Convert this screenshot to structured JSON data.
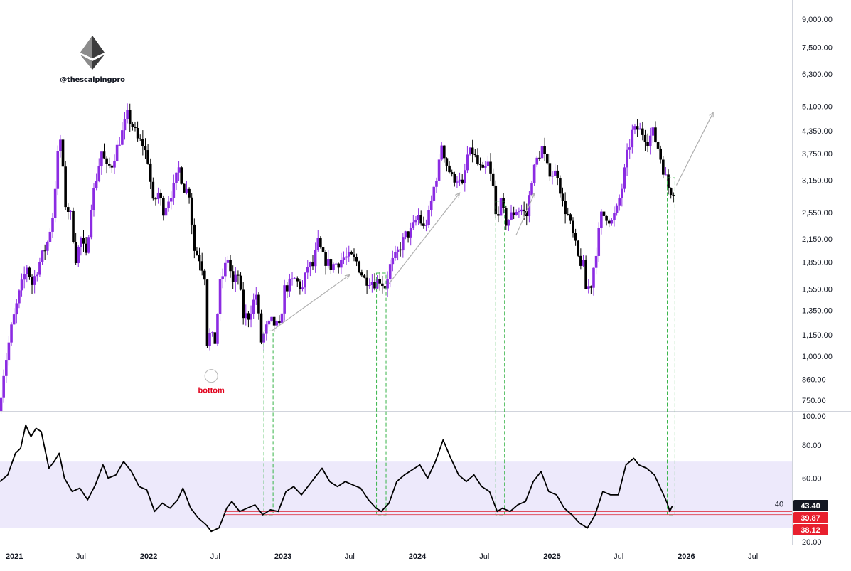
{
  "brand": {
    "handle": "@thescalpingpro",
    "logo_icon": "ethereum-logo-icon"
  },
  "colors": {
    "bull": "#8b2be2",
    "bear": "#000000",
    "rsi_line": "#000000",
    "rsi_band": "#ede9fb",
    "support_line": "#e05262",
    "highlight_box": "#39b54a",
    "trend_arrow": "#b0b0b0",
    "bottom_label": "#e0001b"
  },
  "chart_data": [
    {
      "type": "candlestick",
      "y_scale": "log",
      "ylim": [
        700,
        10200
      ],
      "y_ticks": [
        "9,000.00",
        "7,500.00",
        "6,300.00",
        "5,100.00",
        "4,350.00",
        "3,750.00",
        "3,150.00",
        "2,550.00",
        "2,150.00",
        "1,850.00",
        "1,550.00",
        "1,350.00",
        "1,150.00",
        "1,000.00",
        "860.00",
        "750.00"
      ],
      "y_tick_values": [
        9000,
        7500,
        6300,
        5100,
        4350,
        3750,
        3150,
        2550,
        2150,
        1850,
        1550,
        1350,
        1150,
        1000,
        860,
        750
      ],
      "x_range": [
        "2020-11-23",
        "2026-10-15"
      ],
      "x_ticks": [
        {
          "label": "2021",
          "date": "2021-01-01"
        },
        {
          "label": "Jul",
          "date": "2021-07-01"
        },
        {
          "label": "2022",
          "date": "2022-01-01"
        },
        {
          "label": "Jul",
          "date": "2022-07-01"
        },
        {
          "label": "2023",
          "date": "2023-01-01"
        },
        {
          "label": "Jul",
          "date": "2023-07-01"
        },
        {
          "label": "2024",
          "date": "2024-01-01"
        },
        {
          "label": "Jul",
          "date": "2024-07-01"
        },
        {
          "label": "2025",
          "date": "2025-01-01"
        },
        {
          "label": "Jul",
          "date": "2025-07-01"
        },
        {
          "label": "2026",
          "date": "2026-01-01"
        },
        {
          "label": "Jul",
          "date": "2026-07-01"
        }
      ],
      "price_path": [
        [
          "2020-11-23",
          700
        ],
        [
          "2020-12-07",
          900
        ],
        [
          "2020-12-28",
          1200
        ],
        [
          "2021-01-18",
          1500
        ],
        [
          "2021-02-08",
          1800
        ],
        [
          "2021-02-22",
          1600
        ],
        [
          "2021-03-15",
          1850
        ],
        [
          "2021-04-05",
          2100
        ],
        [
          "2021-04-19",
          2500
        ],
        [
          "2021-05-03",
          3700
        ],
        [
          "2021-05-10",
          4100
        ],
        [
          "2021-05-24",
          2700
        ],
        [
          "2021-06-07",
          2500
        ],
        [
          "2021-06-21",
          1900
        ],
        [
          "2021-07-05",
          2150
        ],
        [
          "2021-07-19",
          1900
        ],
        [
          "2021-08-02",
          2700
        ],
        [
          "2021-08-16",
          3200
        ],
        [
          "2021-08-30",
          3800
        ],
        [
          "2021-09-13",
          3400
        ],
        [
          "2021-09-27",
          3500
        ],
        [
          "2021-10-11",
          3900
        ],
        [
          "2021-10-25",
          4300
        ],
        [
          "2021-11-08",
          4800
        ],
        [
          "2021-11-22",
          4500
        ],
        [
          "2021-12-06",
          4100
        ],
        [
          "2021-12-20",
          4000
        ],
        [
          "2022-01-03",
          3600
        ],
        [
          "2022-01-17",
          2700
        ],
        [
          "2022-01-31",
          2900
        ],
        [
          "2022-02-14",
          2600
        ],
        [
          "2022-02-28",
          2800
        ],
        [
          "2022-03-14",
          3000
        ],
        [
          "2022-03-28",
          3400
        ],
        [
          "2022-04-11",
          3000
        ],
        [
          "2022-04-25",
          2900
        ],
        [
          "2022-05-09",
          2000
        ],
        [
          "2022-05-23",
          1900
        ],
        [
          "2022-06-06",
          1700
        ],
        [
          "2022-06-13",
          1100
        ],
        [
          "2022-06-20",
          1150
        ],
        [
          "2022-07-04",
          1100
        ],
        [
          "2022-07-18",
          1600
        ],
        [
          "2022-08-08",
          1900
        ],
        [
          "2022-08-22",
          1600
        ],
        [
          "2022-09-05",
          1700
        ],
        [
          "2022-09-19",
          1300
        ],
        [
          "2022-10-03",
          1300
        ],
        [
          "2022-10-24",
          1500
        ],
        [
          "2022-11-07",
          1100
        ],
        [
          "2022-11-21",
          1200
        ],
        [
          "2022-12-05",
          1250
        ],
        [
          "2022-12-26",
          1200
        ],
        [
          "2023-01-09",
          1550
        ],
        [
          "2023-01-23",
          1600
        ],
        [
          "2023-02-06",
          1650
        ],
        [
          "2023-02-27",
          1550
        ],
        [
          "2023-03-13",
          1800
        ],
        [
          "2023-03-27",
          1800
        ],
        [
          "2023-04-10",
          2100
        ],
        [
          "2023-04-24",
          1900
        ],
        [
          "2023-05-15",
          1800
        ],
        [
          "2023-06-05",
          1850
        ],
        [
          "2023-06-19",
          1900
        ],
        [
          "2023-07-10",
          1900
        ],
        [
          "2023-07-24",
          1850
        ],
        [
          "2023-08-14",
          1650
        ],
        [
          "2023-08-28",
          1650
        ],
        [
          "2023-09-11",
          1620
        ],
        [
          "2023-09-25",
          1650
        ],
        [
          "2023-10-09",
          1580
        ],
        [
          "2023-10-23",
          1800
        ],
        [
          "2023-11-06",
          1900
        ],
        [
          "2023-11-20",
          2050
        ],
        [
          "2023-12-04",
          2200
        ],
        [
          "2023-12-18",
          2250
        ],
        [
          "2024-01-08",
          2500
        ],
        [
          "2024-01-22",
          2300
        ],
        [
          "2024-02-05",
          2500
        ],
        [
          "2024-02-19",
          3000
        ],
        [
          "2024-03-04",
          3500
        ],
        [
          "2024-03-11",
          4000
        ],
        [
          "2024-03-25",
          3500
        ],
        [
          "2024-04-08",
          3200
        ],
        [
          "2024-04-22",
          3200
        ],
        [
          "2024-05-06",
          3000
        ],
        [
          "2024-05-20",
          3700
        ],
        [
          "2024-06-03",
          3800
        ],
        [
          "2024-06-17",
          3500
        ],
        [
          "2024-07-01",
          3300
        ],
        [
          "2024-07-15",
          3500
        ],
        [
          "2024-07-29",
          3000
        ],
        [
          "2024-08-05",
          2500
        ],
        [
          "2024-08-19",
          2700
        ],
        [
          "2024-09-02",
          2400
        ],
        [
          "2024-09-16",
          2500
        ],
        [
          "2024-09-30",
          2600
        ],
        [
          "2024-10-14",
          2600
        ],
        [
          "2024-10-28",
          2500
        ],
        [
          "2024-11-11",
          3200
        ],
        [
          "2024-11-25",
          3600
        ],
        [
          "2024-12-09",
          3900
        ],
        [
          "2024-12-23",
          3400
        ],
        [
          "2025-01-06",
          3300
        ],
        [
          "2025-01-20",
          3300
        ],
        [
          "2025-02-03",
          2700
        ],
        [
          "2025-02-17",
          2500
        ],
        [
          "2025-03-03",
          2200
        ],
        [
          "2025-03-17",
          1900
        ],
        [
          "2025-03-31",
          1800
        ],
        [
          "2025-04-07",
          1550
        ],
        [
          "2025-04-21",
          1600
        ],
        [
          "2025-05-05",
          2000
        ],
        [
          "2025-05-19",
          2500
        ],
        [
          "2025-06-02",
          2500
        ],
        [
          "2025-06-16",
          2400
        ],
        [
          "2025-06-30",
          2600
        ],
        [
          "2025-07-14",
          3000
        ],
        [
          "2025-07-28",
          3700
        ],
        [
          "2025-08-11",
          4300
        ],
        [
          "2025-08-25",
          4400
        ],
        [
          "2025-09-08",
          4300
        ],
        [
          "2025-09-22",
          4100
        ],
        [
          "2025-10-06",
          4300
        ],
        [
          "2025-10-20",
          3900
        ],
        [
          "2025-11-03",
          3400
        ],
        [
          "2025-11-17",
          3000
        ],
        [
          "2025-11-24",
          2950
        ]
      ],
      "annotations": [
        {
          "type": "label",
          "text": "bottom",
          "date": "2022-06-20",
          "value": 880
        },
        {
          "type": "arrow",
          "from": [
            "2022-12-01",
            1180
          ],
          "to": [
            "2023-07-01",
            1700
          ]
        },
        {
          "type": "arrow",
          "from": [
            "2023-10-15",
            1600
          ],
          "to": [
            "2024-04-25",
            2900
          ]
        },
        {
          "type": "arrow",
          "from": [
            "2024-09-25",
            2200
          ],
          "to": [
            "2024-11-15",
            2900
          ]
        },
        {
          "type": "arrow",
          "from": [
            "2025-12-05",
            3050
          ],
          "to": [
            "2026-03-15",
            4900
          ]
        }
      ]
    },
    {
      "type": "line",
      "name": "RSI",
      "ylim": [
        20,
        100
      ],
      "y_ticks": [
        "100.00",
        "80.00",
        "60.00",
        "20.00"
      ],
      "y_tick_values": [
        100,
        80,
        60,
        20
      ],
      "band": [
        30,
        70
      ],
      "reference_lines": [
        {
          "label": "40",
          "value": 40
        },
        {
          "value": 39.87
        },
        {
          "value": 38.12
        }
      ],
      "value_labels": [
        {
          "text": "43.40",
          "value": 43.4,
          "bg": "#131722"
        },
        {
          "text": "39.87",
          "value": 39.87,
          "bg": "#e8202e"
        },
        {
          "text": "38.12",
          "value": 38.12,
          "bg": "#e8202e"
        }
      ],
      "points": [
        [
          "2020-11-23",
          58
        ],
        [
          "2020-12-14",
          62
        ],
        [
          "2021-01-04",
          75
        ],
        [
          "2021-01-18",
          78
        ],
        [
          "2021-02-01",
          92
        ],
        [
          "2021-02-15",
          85
        ],
        [
          "2021-03-01",
          90
        ],
        [
          "2021-03-15",
          88
        ],
        [
          "2021-04-05",
          66
        ],
        [
          "2021-04-19",
          70
        ],
        [
          "2021-05-03",
          75
        ],
        [
          "2021-05-17",
          60
        ],
        [
          "2021-06-07",
          52
        ],
        [
          "2021-06-28",
          54
        ],
        [
          "2021-07-19",
          47
        ],
        [
          "2021-08-09",
          56
        ],
        [
          "2021-08-30",
          68
        ],
        [
          "2021-09-13",
          60
        ],
        [
          "2021-10-04",
          62
        ],
        [
          "2021-10-25",
          70
        ],
        [
          "2021-11-15",
          64
        ],
        [
          "2021-12-06",
          55
        ],
        [
          "2021-12-27",
          53
        ],
        [
          "2022-01-17",
          40
        ],
        [
          "2022-02-07",
          45
        ],
        [
          "2022-02-28",
          42
        ],
        [
          "2022-03-21",
          47
        ],
        [
          "2022-04-04",
          54
        ],
        [
          "2022-04-25",
          42
        ],
        [
          "2022-05-16",
          36
        ],
        [
          "2022-06-06",
          32
        ],
        [
          "2022-06-20",
          28
        ],
        [
          "2022-07-11",
          30
        ],
        [
          "2022-08-01",
          42
        ],
        [
          "2022-08-15",
          46
        ],
        [
          "2022-09-05",
          40
        ],
        [
          "2022-09-26",
          42
        ],
        [
          "2022-10-17",
          44
        ],
        [
          "2022-11-07",
          38
        ],
        [
          "2022-11-28",
          41
        ],
        [
          "2022-12-19",
          40
        ],
        [
          "2023-01-09",
          52
        ],
        [
          "2023-01-30",
          55
        ],
        [
          "2023-02-20",
          50
        ],
        [
          "2023-03-13",
          56
        ],
        [
          "2023-04-03",
          62
        ],
        [
          "2023-04-17",
          66
        ],
        [
          "2023-05-08",
          58
        ],
        [
          "2023-05-29",
          55
        ],
        [
          "2023-06-19",
          58
        ],
        [
          "2023-07-10",
          56
        ],
        [
          "2023-07-31",
          54
        ],
        [
          "2023-08-21",
          47
        ],
        [
          "2023-09-11",
          42
        ],
        [
          "2023-09-25",
          40
        ],
        [
          "2023-10-16",
          45
        ],
        [
          "2023-11-06",
          58
        ],
        [
          "2023-11-27",
          62
        ],
        [
          "2023-12-18",
          65
        ],
        [
          "2024-01-08",
          68
        ],
        [
          "2024-01-29",
          60
        ],
        [
          "2024-02-19",
          70
        ],
        [
          "2024-03-11",
          83
        ],
        [
          "2024-04-01",
          72
        ],
        [
          "2024-04-22",
          62
        ],
        [
          "2024-05-13",
          58
        ],
        [
          "2024-06-03",
          62
        ],
        [
          "2024-06-24",
          55
        ],
        [
          "2024-07-15",
          52
        ],
        [
          "2024-08-05",
          40
        ],
        [
          "2024-08-19",
          42
        ],
        [
          "2024-09-09",
          40
        ],
        [
          "2024-09-30",
          44
        ],
        [
          "2024-10-21",
          46
        ],
        [
          "2024-11-11",
          58
        ],
        [
          "2024-12-02",
          64
        ],
        [
          "2024-12-23",
          52
        ],
        [
          "2025-01-13",
          50
        ],
        [
          "2025-02-03",
          42
        ],
        [
          "2025-02-24",
          38
        ],
        [
          "2025-03-17",
          33
        ],
        [
          "2025-04-07",
          30
        ],
        [
          "2025-04-28",
          38
        ],
        [
          "2025-05-19",
          52
        ],
        [
          "2025-06-09",
          50
        ],
        [
          "2025-06-30",
          50
        ],
        [
          "2025-07-21",
          68
        ],
        [
          "2025-08-11",
          72
        ],
        [
          "2025-08-25",
          68
        ],
        [
          "2025-09-15",
          66
        ],
        [
          "2025-10-06",
          62
        ],
        [
          "2025-10-27",
          52
        ],
        [
          "2025-11-10",
          45
        ],
        [
          "2025-11-17",
          40
        ],
        [
          "2025-11-24",
          43.4
        ]
      ]
    }
  ]
}
